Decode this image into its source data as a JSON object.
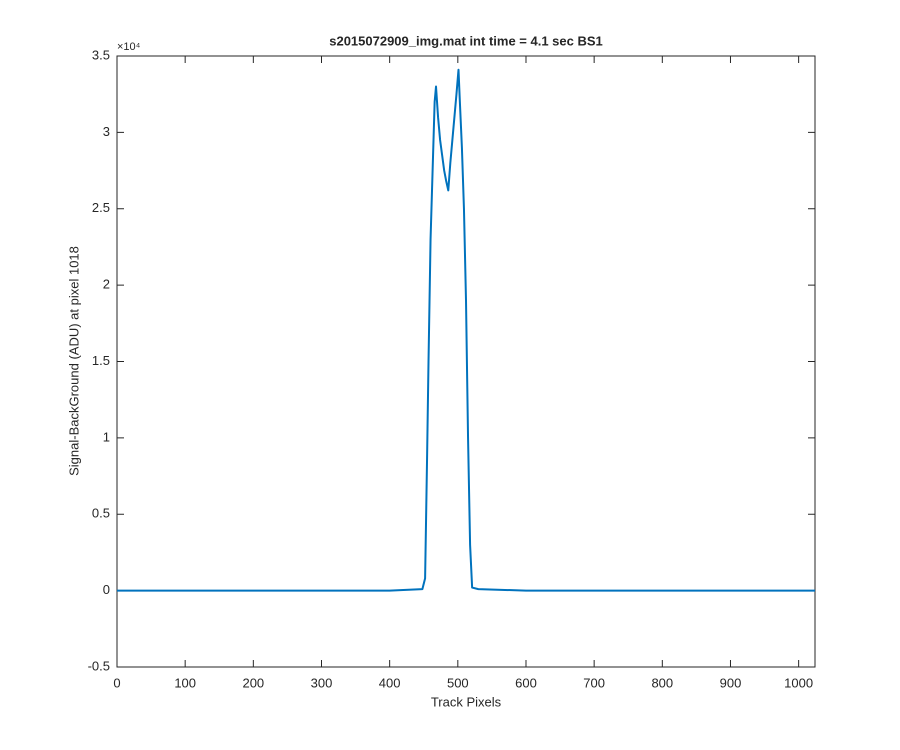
{
  "chart_data": {
    "type": "line",
    "title": "s2015072909_img.mat int time = 4.1 sec   BS1",
    "x_label": "Track Pixels",
    "y_label": "Signal-BackGround (ADU) at pixel 1018",
    "y_multiplier": "×10⁴",
    "x": [
      0,
      100,
      200,
      300,
      400,
      448,
      452,
      455,
      457,
      460,
      463,
      466,
      468,
      471,
      474,
      477,
      480,
      483,
      486,
      489,
      492,
      495,
      498,
      501,
      503,
      506,
      509,
      512,
      515,
      518,
      521,
      530,
      600,
      700,
      800,
      900,
      1024
    ],
    "series": [
      {
        "color": "#0072bd",
        "values": [
          0,
          0,
          0,
          0,
          0,
          0.01,
          0.08,
          0.9,
          1.5,
          2.3,
          2.75,
          3.2,
          3.3,
          3.1,
          2.95,
          2.85,
          2.75,
          2.68,
          2.62,
          2.8,
          2.95,
          3.1,
          3.25,
          3.41,
          3.2,
          2.9,
          2.5,
          1.9,
          1.0,
          0.3,
          0.02,
          0.01,
          0,
          0,
          0,
          0,
          0
        ]
      }
    ],
    "xlim": [
      0,
      1024
    ],
    "xticks": [
      0,
      100,
      200,
      300,
      400,
      500,
      600,
      700,
      800,
      900,
      1000
    ],
    "ylim": [
      -0.5,
      3.5
    ],
    "yticks": [
      -0.5,
      0,
      0.5,
      1,
      1.5,
      2,
      2.5,
      3,
      3.5
    ],
    "grid": false
  }
}
